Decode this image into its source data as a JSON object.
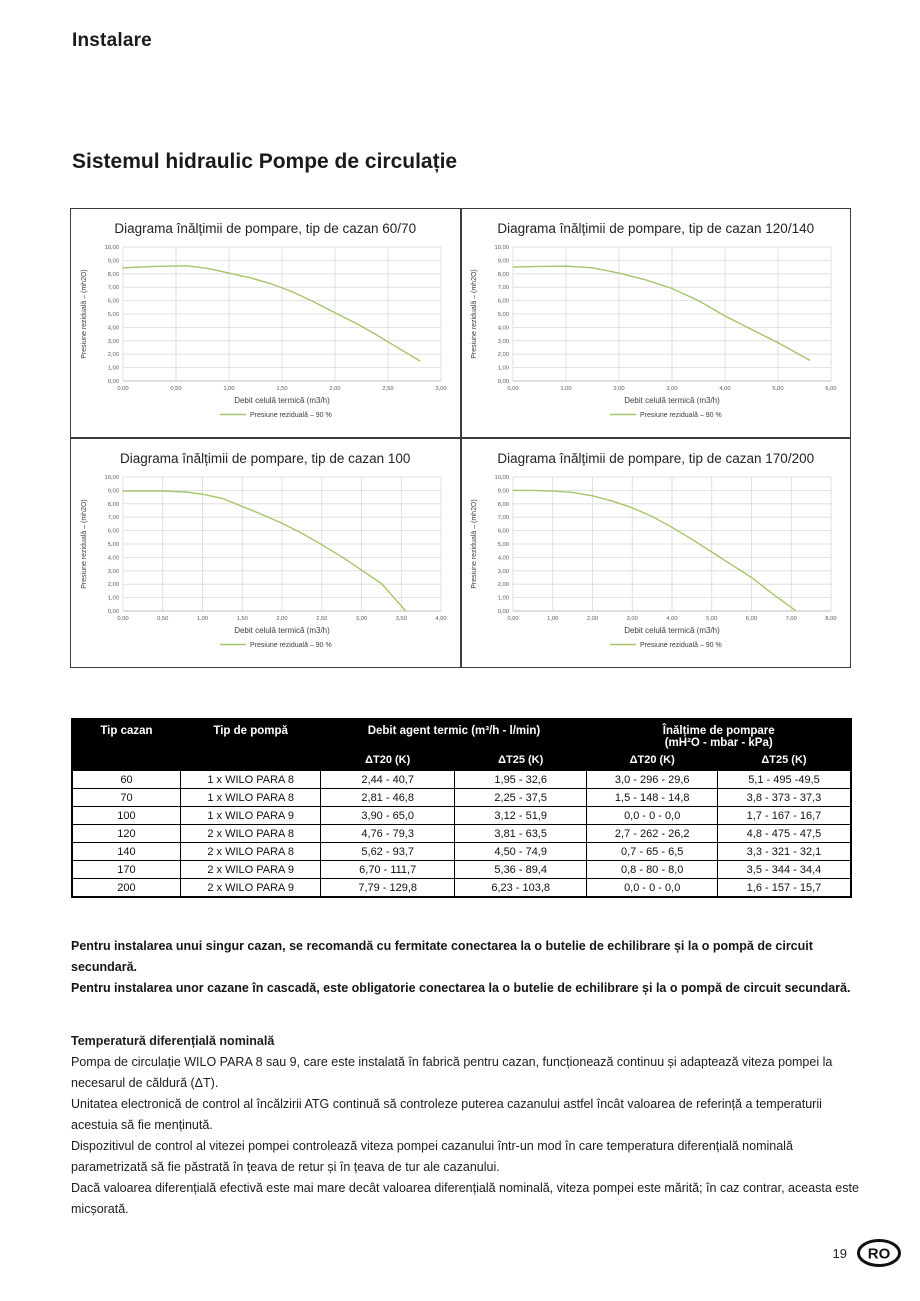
{
  "page": {
    "header": "Instalare",
    "section_title": "Sistemul hidraulic Pompe de circulație",
    "page_number": "19",
    "country_badge": "RO"
  },
  "chart_data": [
    {
      "type": "line",
      "title": "Diagrama înălțimii de pompare, tip de cazan 60/70",
      "xlabel": "Debit celulă termică (m3/h)",
      "ylabel": "Presiune reziduală – (mh2O)",
      "legend": "Presiune reziduală – 90 %",
      "xlim": [
        0,
        3
      ],
      "xstep": 0.5,
      "ylim": [
        0,
        10
      ],
      "ystep": 1,
      "grid": true,
      "line_color": "#a5c56a",
      "points": [
        [
          0,
          8.45
        ],
        [
          0.3,
          8.55
        ],
        [
          0.6,
          8.6
        ],
        [
          0.8,
          8.4
        ],
        [
          1.0,
          8.05
        ],
        [
          1.2,
          7.7
        ],
        [
          1.4,
          7.25
        ],
        [
          1.6,
          6.65
        ],
        [
          1.8,
          5.9
        ],
        [
          2.0,
          5.1
        ],
        [
          2.2,
          4.3
        ],
        [
          2.4,
          3.4
        ],
        [
          2.6,
          2.45
        ],
        [
          2.8,
          1.5
        ]
      ]
    },
    {
      "type": "line",
      "title": "Diagrama înălțimii de pompare, tip de cazan 120/140",
      "xlabel": "Debit celulă termică (m3/h)",
      "ylabel": "Presiune reziduală – (mh2O)",
      "legend": "Presiune reziduală – 90 %",
      "xlim": [
        0,
        6
      ],
      "xstep": 1,
      "ylim": [
        0,
        10
      ],
      "ystep": 1,
      "grid": true,
      "line_color": "#a5c56a",
      "points": [
        [
          0,
          8.5
        ],
        [
          0.5,
          8.55
        ],
        [
          1.0,
          8.57
        ],
        [
          1.5,
          8.45
        ],
        [
          2.0,
          8.05
        ],
        [
          2.5,
          7.55
        ],
        [
          3.0,
          6.9
        ],
        [
          3.5,
          6.0
        ],
        [
          4.0,
          4.85
        ],
        [
          4.5,
          3.85
        ],
        [
          5.0,
          2.85
        ],
        [
          5.6,
          1.55
        ]
      ]
    },
    {
      "type": "line",
      "title": "Diagrama înălțimii de pompare, tip de cazan 100",
      "xlabel": "Debit celulă termică (m3/h)",
      "ylabel": "Presiune reziduală – (mh2O)",
      "legend": "Presiune reziduală – 90 %",
      "xlim": [
        0,
        4
      ],
      "xstep": 0.5,
      "ylim": [
        0,
        10
      ],
      "ystep": 1,
      "grid": true,
      "line_color": "#a5c56a",
      "points": [
        [
          0,
          8.95
        ],
        [
          0.5,
          8.95
        ],
        [
          0.8,
          8.88
        ],
        [
          1.0,
          8.72
        ],
        [
          1.25,
          8.4
        ],
        [
          1.5,
          7.8
        ],
        [
          1.75,
          7.2
        ],
        [
          2.0,
          6.55
        ],
        [
          2.25,
          5.8
        ],
        [
          2.5,
          4.95
        ],
        [
          2.75,
          4.05
        ],
        [
          3.0,
          3.05
        ],
        [
          3.25,
          2.05
        ],
        [
          3.55,
          0.05
        ]
      ]
    },
    {
      "type": "line",
      "title": "Diagrama înălțimii de pompare, tip de cazan 170/200",
      "xlabel": "Debit celulă termică (m3/h)",
      "ylabel": "Presiune reziduală – (mh2O)",
      "legend": "Presiune reziduală – 90 %",
      "xlim": [
        0,
        8
      ],
      "xstep": 1,
      "ylim": [
        0,
        10
      ],
      "ystep": 1,
      "grid": true,
      "line_color": "#a5c56a",
      "points": [
        [
          0,
          9.0
        ],
        [
          0.5,
          9.0
        ],
        [
          1.0,
          8.95
        ],
        [
          1.5,
          8.85
        ],
        [
          2.0,
          8.6
        ],
        [
          2.5,
          8.2
        ],
        [
          3.0,
          7.7
        ],
        [
          3.5,
          7.05
        ],
        [
          4.0,
          6.25
        ],
        [
          4.5,
          5.35
        ],
        [
          5.0,
          4.4
        ],
        [
          5.5,
          3.45
        ],
        [
          6.0,
          2.5
        ],
        [
          6.5,
          1.35
        ],
        [
          7.1,
          0.05
        ]
      ]
    }
  ],
  "table": {
    "header": {
      "col_tip_cazan": "Tip cazan",
      "col_tip_pompa": "Tip de pompă",
      "group_debit": "Debit agent termic (m³/h - l/min)",
      "group_inaltime_line1": "Înălțime de pompare",
      "group_inaltime_line2": "(mH²O - mbar - kPa)",
      "sub": [
        "ΔT20 (K)",
        "ΔT25 (K)",
        "ΔT20 (K)",
        "ΔT25 (K)"
      ]
    },
    "rows": [
      [
        "60",
        "1 x WILO PARA 8",
        "2,44 - 40,7",
        "1,95 - 32,6",
        "3,0 - 296 - 29,6",
        "5,1 - 495 -49,5"
      ],
      [
        "70",
        "1 x WILO PARA 8",
        "2,81 - 46,8",
        "2,25 - 37,5",
        "1,5 - 148 - 14,8",
        "3,8 - 373 - 37,3"
      ],
      [
        "100",
        "1 x WILO PARA 9",
        "3,90 - 65,0",
        "3,12 - 51,9",
        "0,0 - 0 - 0,0",
        "1,7 - 167 - 16,7"
      ],
      [
        "120",
        "2 x WILO PARA 8",
        "4,76 - 79,3",
        "3,81 - 63,5",
        "2,7 - 262 - 26,2",
        "4,8 - 475 - 47,5"
      ],
      [
        "140",
        "2 x WILO PARA 8",
        "5,62 - 93,7",
        "4,50 - 74,9",
        "0,7 - 65 - 6,5",
        "3,3 - 321 - 32,1"
      ],
      [
        "170",
        "2 x WILO PARA 9",
        "6,70 - 111,7",
        "5,36 - 89,4",
        "0,8 - 80 - 8,0",
        "3,5 - 344 - 34,4"
      ],
      [
        "200",
        "2 x WILO PARA 9",
        "7,79 - 129,8",
        "6,23 - 103,8",
        "0,0 - 0 - 0,0",
        "1,6 - 157 - 15,7"
      ]
    ]
  },
  "notes_bold": [
    "Pentru instalarea unui singur cazan, se recomandă cu fermitate conectarea la o butelie de echilibrare și la o pompă de circuit secundară.",
    "Pentru instalarea unor cazane în cascadă, este obligatorie conectarea la o butelie de echilibrare și la o pompă de circuit secundară."
  ],
  "diff_section": {
    "title": "Temperatură diferențială nominală",
    "paragraphs": [
      "Pompa de circulație WILO PARA 8 sau 9, care este instalată în fabrică pentru cazan, funcționează continuu și adaptează viteza pompei la necesarul de căldură (ΔT).",
      "Unitatea electronică de control al încălzirii ATG continuă să controleze puterea cazanului astfel încât valoarea de referință a temperaturii acestuia să fie menținută.",
      "Dispozitivul de control al vitezei pompei controlează viteza pompei cazanului într-un mod în care temperatura diferențială nominală parametrizată să fie păstrată în țeava de retur și în țeava de tur ale cazanului.",
      "Dacă valoarea diferențială efectivă este mai mare decât valoarea diferențială nominală, viteza pompei este mărită; în caz contrar, aceasta este micșorată."
    ]
  },
  "colors": {
    "curve_green": "#a5c56a",
    "grid_gray": "#d9d9d9",
    "axis_gray": "#bfbfbf",
    "tick_text": "#595959",
    "axis_text": "#3d3d3d",
    "header_bg": "#000000"
  }
}
